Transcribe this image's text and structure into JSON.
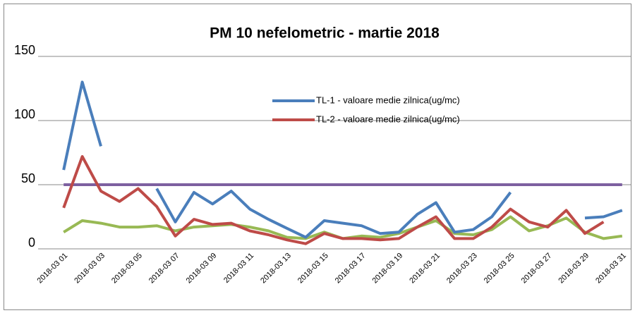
{
  "chart_data": {
    "type": "line",
    "title": "PM 10 nefelometric - martie  2018",
    "categories": [
      "2018-03 01",
      null,
      "2018-03 03",
      null,
      "2018-03 05",
      null,
      "2018-03 07",
      null,
      "2018-03 09",
      null,
      "2018-03 11",
      null,
      "2018-03 13",
      null,
      "2018-03 15",
      null,
      "2018-03 17",
      null,
      "2018-03 19",
      null,
      "2018-03 21",
      null,
      "2018-03 23",
      null,
      "2018-03 25",
      null,
      "2018-03 27",
      null,
      "2018-03 29",
      null,
      "2018-03 31"
    ],
    "series": [
      {
        "name": "TL-1 - valoare medie zilnica(ug/mc)",
        "color": "#4a7ebb",
        "values": [
          61.5,
          130,
          80,
          null,
          null,
          47,
          21,
          44,
          35,
          45,
          31,
          23,
          16,
          9,
          22,
          20,
          18,
          12,
          13,
          27,
          36,
          13,
          15,
          25,
          44,
          null,
          null,
          null,
          24,
          25,
          30
        ]
      },
      {
        "name": "TL-2 - valoare medie zilnica(ug/mc)",
        "color": "#be4b48",
        "values": [
          32,
          72,
          45,
          37,
          47,
          33,
          10,
          23,
          19,
          20,
          14,
          11,
          7,
          4,
          12,
          8,
          8,
          7,
          8,
          17,
          25,
          8,
          8,
          17,
          31,
          21,
          17,
          30,
          12,
          21,
          null
        ]
      },
      {
        "color": "#98b954",
        "values": [
          13,
          22,
          20,
          17,
          17,
          18,
          14,
          17,
          18,
          19,
          17,
          14,
          9,
          8,
          13,
          8,
          10,
          9,
          12,
          17,
          22,
          12,
          11,
          15,
          25,
          14,
          18,
          24,
          13,
          8,
          10
        ]
      },
      {
        "color": "#7d60a0",
        "values": [
          50,
          50,
          50,
          50,
          50,
          50,
          50,
          50,
          50,
          50,
          50,
          50,
          50,
          50,
          50,
          50,
          50,
          50,
          50,
          50,
          50,
          50,
          50,
          50,
          50,
          50,
          50,
          50,
          50,
          50,
          50
        ]
      }
    ],
    "ylim": [
      0,
      150
    ],
    "yticks": [
      0,
      50,
      100,
      150
    ],
    "grid": true
  }
}
